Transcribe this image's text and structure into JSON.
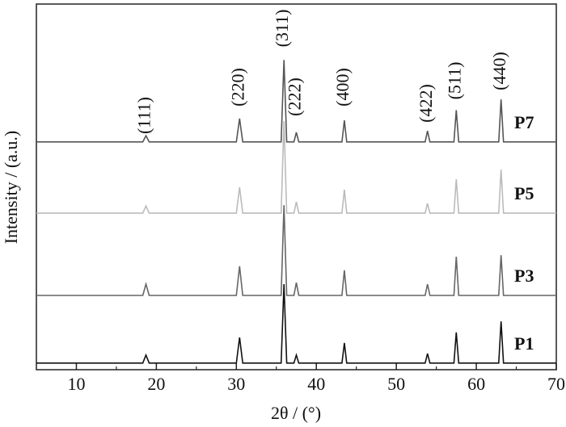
{
  "chart_data": {
    "type": "line",
    "x_label": "2θ / (°)",
    "y_label": "Intensity / (a.u.)",
    "x": [
      5,
      18.3,
      18.7,
      19.1,
      30.0,
      30.4,
      30.8,
      35.6,
      35.95,
      36.3,
      37.2,
      37.5,
      37.8,
      43.2,
      43.5,
      43.8,
      53.6,
      53.9,
      54.2,
      57.2,
      57.5,
      57.8,
      62.8,
      63.1,
      63.4,
      70
    ],
    "series": [
      {
        "name": "P7",
        "color": "#555555",
        "values": [
          62.3,
          62.3,
          64,
          62.3,
          62.3,
          68.7,
          62.3,
          62.3,
          84.7,
          62.3,
          62.3,
          64.9,
          62.3,
          62.3,
          68.2,
          62.3,
          62.3,
          65.3,
          62.3,
          62.3,
          71,
          62.3,
          62.3,
          73.9,
          62.3,
          62.3
        ]
      },
      {
        "name": "P5",
        "color": "#bbbbbb",
        "values": [
          42.8,
          42.8,
          44.8,
          42.8,
          42.8,
          49.9,
          42.8,
          42.8,
          68,
          42.8,
          42.8,
          45.9,
          42.8,
          42.8,
          49.2,
          42.8,
          42.8,
          45.5,
          42.8,
          42.8,
          52.1,
          42.8,
          42.8,
          54.7,
          42.8,
          42.8
        ]
      },
      {
        "name": "P3",
        "color": "#666666",
        "values": [
          20.3,
          20.3,
          23.4,
          20.3,
          20.3,
          28.3,
          20.3,
          20.3,
          45,
          20.3,
          20.3,
          23.8,
          20.3,
          20.3,
          27.2,
          20.3,
          20.3,
          23.4,
          20.3,
          20.3,
          30.9,
          20.3,
          20.3,
          31.3,
          20.3,
          20.3
        ]
      },
      {
        "name": "P1",
        "color": "#111111",
        "values": [
          1.8,
          1.8,
          4,
          1.8,
          1.8,
          8.8,
          1.8,
          1.8,
          23.4,
          1.8,
          1.8,
          4,
          1.8,
          1.8,
          7.3,
          1.8,
          1.8,
          4.4,
          1.8,
          1.8,
          10.2,
          1.8,
          1.8,
          13.2,
          1.8,
          1.8
        ]
      }
    ],
    "annotations": [
      {
        "text": "(111)",
        "x": 18.7
      },
      {
        "text": "(220)",
        "x": 30.4
      },
      {
        "text": "(311)",
        "x": 35.95
      },
      {
        "text": "(222)",
        "x": 37.5
      },
      {
        "text": "(400)",
        "x": 43.5
      },
      {
        "text": "(422)",
        "x": 53.9
      },
      {
        "text": "(511)",
        "x": 57.5
      },
      {
        "text": "(440)",
        "x": 63.1
      }
    ],
    "xlim": [
      5,
      70
    ],
    "ylim": [
      0,
      100
    ],
    "xticks": [
      10,
      20,
      30,
      40,
      50,
      60,
      70
    ],
    "xminorticks": [
      15,
      25,
      35,
      45,
      55,
      65
    ]
  }
}
